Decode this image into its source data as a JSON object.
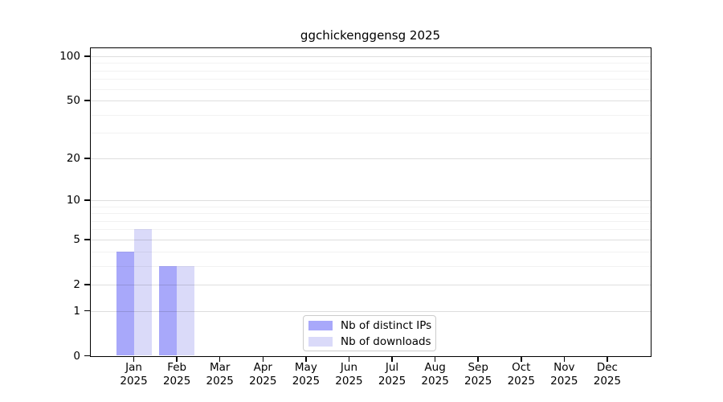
{
  "chart_data": {
    "type": "bar",
    "title": "ggchickenggensg 2025",
    "categories": [
      "Jan 2025",
      "Feb 2025",
      "Mar 2025",
      "Apr 2025",
      "May 2025",
      "Jun 2025",
      "Jul 2025",
      "Aug 2025",
      "Sep 2025",
      "Oct 2025",
      "Nov 2025",
      "Dec 2025"
    ],
    "series": [
      {
        "name": "Nb of distinct IPs",
        "color": "#a8a8fa",
        "values": [
          4,
          3,
          0,
          0,
          0,
          0,
          0,
          0,
          0,
          0,
          0,
          0
        ]
      },
      {
        "name": "Nb of downloads",
        "color": "#dadaf9",
        "values": [
          6,
          3,
          0,
          0,
          0,
          0,
          0,
          0,
          0,
          0,
          0,
          0
        ]
      }
    ],
    "xlabel": "",
    "ylabel": "",
    "yscale": "log1p",
    "ylim": [
      0,
      113.3
    ],
    "yticks": [
      0,
      1,
      2,
      5,
      10,
      20,
      50,
      100
    ],
    "minor_gridlines": [
      3,
      4,
      6,
      7,
      8,
      9,
      30,
      40,
      60,
      70,
      80,
      90
    ],
    "grid": "horizontal",
    "legend": {
      "position": "lower center",
      "items": [
        "Nb of distinct IPs",
        "Nb of downloads"
      ]
    },
    "colors": {
      "axis": "#000000",
      "grid_major": "rgba(0,0,0,0.13)",
      "grid_minor": "rgba(0,0,0,0.05)",
      "background": "#ffffff"
    }
  }
}
